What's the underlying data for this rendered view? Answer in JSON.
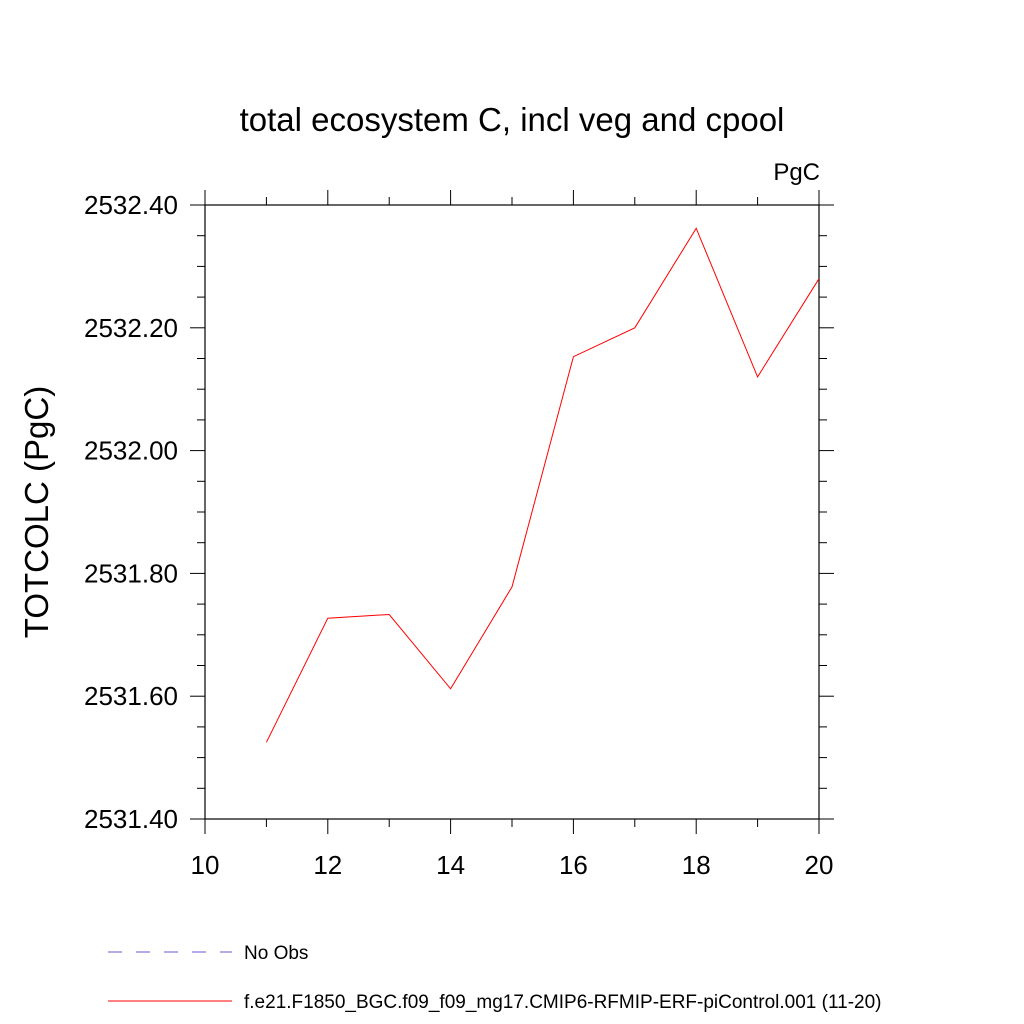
{
  "chart_data": {
    "type": "line",
    "title": "total ecosystem C, incl veg and cpool",
    "units": "PgC",
    "ylabel": "TOTCOLC  (PgC)",
    "xlabel": "",
    "xlim": [
      10,
      20
    ],
    "ylim": [
      2531.4,
      2532.4
    ],
    "x_ticks": [
      10,
      12,
      14,
      16,
      18,
      20
    ],
    "x_tick_labels": [
      "10",
      "12",
      "14",
      "16",
      "18",
      "20"
    ],
    "y_ticks": [
      2531.4,
      2531.6,
      2531.8,
      2532.0,
      2532.2,
      2532.4
    ],
    "y_tick_labels": [
      "2531.40",
      "2531.60",
      "2531.80",
      "2532.00",
      "2532.20",
      "2532.40"
    ],
    "series": [
      {
        "name": "f.e21.F1850_BGC.f09_f09_mg17.CMIP6-RFMIP-ERF-piControl.001 (11-20)",
        "color": "#ff0000",
        "style": "solid",
        "x": [
          11,
          12,
          13,
          14,
          15,
          16,
          17,
          18,
          19,
          20
        ],
        "y": [
          2531.525,
          2531.727,
          2531.733,
          2531.612,
          2531.778,
          2532.153,
          2532.2,
          2532.362,
          2532.12,
          2532.28
        ]
      }
    ],
    "legend": [
      {
        "label": "No Obs",
        "color": "#6a5acd",
        "style": "dashed"
      },
      {
        "label": "f.e21.F1850_BGC.f09_f09_mg17.CMIP6-RFMIP-ERF-piControl.001 (11-20)",
        "color": "#ff0000",
        "style": "solid"
      }
    ]
  }
}
